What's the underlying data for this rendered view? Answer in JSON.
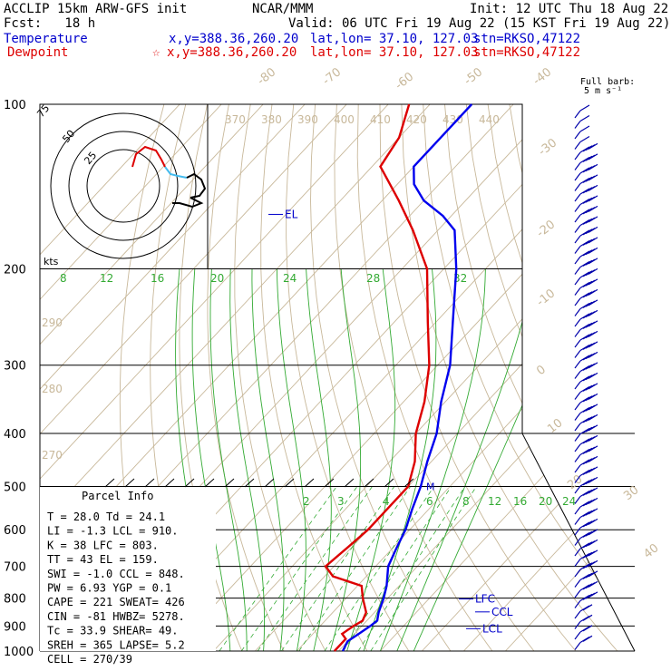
{
  "header": {
    "title_left": "ACCLIP 15km ARW-GFS init",
    "org": "NCAR/MMM",
    "init": "Init: 12 UTC Thu 18 Aug 22",
    "fcst": "Fcst:   18 h",
    "valid": "Valid: 06 UTC Fri 19 Aug 22 (15 KST Fri 19 Aug 22)",
    "temp_label": "Temperature",
    "temp_xy": "x,y=388.36,260.20",
    "temp_latlon": "lat,lon= 37.10, 127.03",
    "temp_stn": "stn=RKSO,47122",
    "dew_label": "Dewpoint",
    "dew_xy": "x,y=388.36,260.20",
    "dew_latlon": "lat,lon= 37.10, 127.03",
    "dew_stn": "stn=RKSO,47122",
    "barb_note_1": "Full barb:",
    "barb_note_2": "5 m s⁻¹",
    "star_symbol": "☆"
  },
  "chart_data": {
    "type": "skew-t",
    "pressure_ticks": [
      100,
      200,
      300,
      400,
      500,
      600,
      700,
      800,
      900,
      1000
    ],
    "isotherm_labels": [
      -80,
      -70,
      -60,
      -50,
      -40,
      -30,
      -20,
      -10,
      0,
      10,
      20,
      30,
      40
    ],
    "theta_labels": [
      370,
      380,
      390,
      400,
      410,
      420,
      430,
      440
    ],
    "theta_left_labels": [
      290,
      280,
      270
    ],
    "mixing_ratio_upper": [
      8,
      12,
      16,
      20,
      24,
      28,
      32
    ],
    "mixing_ratio_lower": [
      2,
      3,
      4,
      6,
      8,
      12,
      16,
      20,
      24
    ],
    "temperature_series": {
      "name": "Temperature",
      "points": [
        [
          1000,
          21
        ],
        [
          960,
          20
        ],
        [
          930,
          21
        ],
        [
          900,
          22
        ],
        [
          880,
          22.5
        ],
        [
          850,
          21
        ],
        [
          800,
          19
        ],
        [
          760,
          17
        ],
        [
          700,
          13
        ],
        [
          650,
          11
        ],
        [
          600,
          9
        ],
        [
          550,
          6
        ],
        [
          500,
          3
        ],
        [
          450,
          -1
        ],
        [
          400,
          -5
        ],
        [
          350,
          -11
        ],
        [
          300,
          -17
        ],
        [
          250,
          -26
        ],
        [
          200,
          -37
        ],
        [
          170,
          -46
        ],
        [
          160,
          -52
        ],
        [
          150,
          -60
        ],
        [
          140,
          -66
        ],
        [
          130,
          -70
        ],
        [
          115,
          -70
        ],
        [
          100,
          -70
        ]
      ]
    },
    "dewpoint_series": {
      "name": "Dewpoint",
      "points": [
        [
          1000,
          19
        ],
        [
          950,
          19
        ],
        [
          930,
          17
        ],
        [
          900,
          18
        ],
        [
          880,
          19
        ],
        [
          850,
          18
        ],
        [
          800,
          14
        ],
        [
          760,
          11
        ],
        [
          730,
          2
        ],
        [
          700,
          -2
        ],
        [
          650,
          -1
        ],
        [
          600,
          0
        ],
        [
          550,
          0
        ],
        [
          500,
          0
        ],
        [
          450,
          -4
        ],
        [
          400,
          -10
        ],
        [
          350,
          -15
        ],
        [
          300,
          -22
        ],
        [
          250,
          -32
        ],
        [
          200,
          -44
        ],
        [
          170,
          -56
        ],
        [
          150,
          -66
        ],
        [
          130,
          -78
        ],
        [
          115,
          -80
        ],
        [
          100,
          -85
        ]
      ]
    },
    "levels": [
      {
        "label": "EL",
        "p": 159
      },
      {
        "label": "LFC",
        "p": 803
      },
      {
        "label": "CCL",
        "p": 848
      },
      {
        "label": "LCL",
        "p": 910
      },
      {
        "label": "M",
        "p": 500
      }
    ],
    "hodograph": {
      "rings": [
        "25",
        "50",
        "75"
      ],
      "unit": "kts"
    },
    "parcel_info": {
      "title": "Parcel Info",
      "rows": [
        "T  =   28.0 Td =  24.1",
        "LI =   -1.3 LCL =  910.",
        "K  =     38 LFC =  803.",
        "TT =     43 EL  =  159.",
        "SWI =  -1.0 CCL =  848.",
        "PW =   6.93 YGP =   0.1",
        "CAPE =   221 SWEAT=  426",
        "CIN =   -81 HWBZ= 5278.",
        "Tc =   33.9 SHEAR=  49.",
        "SREH =  365 LAPSE=  5.2",
        "CELL = 270/39"
      ]
    }
  }
}
